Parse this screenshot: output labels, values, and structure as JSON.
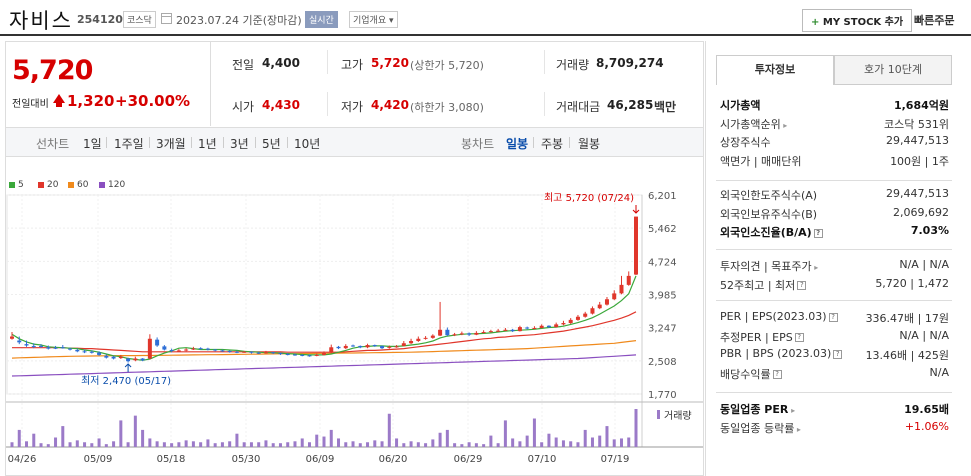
{
  "header": {
    "name": "자비스",
    "code": "254120",
    "market": "코스닥",
    "date": "2023.07.24  기준(장마감)",
    "realtime": "실시간",
    "company": "기업개요 ▾",
    "mystock": "MY STOCK 추가",
    "mystock_plus": "+",
    "quick_order": "빠른주문"
  },
  "price": {
    "current": "5,720",
    "change_label": "전일대비",
    "change_amount": "1,320",
    "change_pct": "+30.00%"
  },
  "stats": {
    "prev_label": "전일",
    "prev": "4,400",
    "high_label": "고가",
    "high": "5,720",
    "high_note": "(상한가 5,720)",
    "vol_label": "거래량",
    "vol": "8,709,274",
    "open_label": "시가",
    "open": "4,430",
    "low_label": "저가",
    "low": "4,420",
    "low_note": "(하한가 3,080)",
    "amt_label": "거래대금",
    "amt": "46,285",
    "amt_unit": "백만"
  },
  "period": {
    "line_label": "선차트",
    "line_opts": [
      "1일",
      "1주일",
      "3개월",
      "1년",
      "3년",
      "5년",
      "10년"
    ],
    "candle_label": "봉차트",
    "candle_opts": [
      "일봉",
      "주봉",
      "월봉"
    ],
    "active_candle": "일봉"
  },
  "legend": [
    {
      "name": "5",
      "color": "#3aa83a"
    },
    {
      "name": "20",
      "color": "#e0362b"
    },
    {
      "name": "60",
      "color": "#f08a1c"
    },
    {
      "name": "120",
      "color": "#8a4fc0"
    }
  ],
  "chart_data": {
    "type": "candlestick",
    "title": "",
    "ylim": [
      1770,
      6201
    ],
    "y_ticks": [
      "6,201",
      "5,462",
      "4,724",
      "3,985",
      "3,247",
      "2,508",
      "1,770"
    ],
    "x_ticks": [
      "04/26",
      "05/09",
      "05/18",
      "05/30",
      "06/09",
      "06/20",
      "06/29",
      "07/10",
      "07/19"
    ],
    "max_annotation": "최고 5,720 (07/24)",
    "min_annotation": "최저 2,470 (05/17)",
    "volume_label": "거래량",
    "closes": [
      3050,
      2920,
      2850,
      2820,
      2830,
      2780,
      2790,
      2800,
      2760,
      2720,
      2700,
      2690,
      2640,
      2580,
      2560,
      2600,
      2500,
      2560,
      2520,
      3000,
      2850,
      2760,
      2730,
      2740,
      2760,
      2780,
      2780,
      2760,
      2740,
      2730,
      2710,
      2700,
      2710,
      2690,
      2680,
      2700,
      2680,
      2660,
      2650,
      2640,
      2630,
      2620,
      2640,
      2680,
      2810,
      2790,
      2840,
      2840,
      2810,
      2860,
      2840,
      2790,
      2820,
      2830,
      2900,
      2950,
      3000,
      3020,
      3070,
      3200,
      3080,
      3100,
      3120,
      3090,
      3130,
      3150,
      3170,
      3180,
      3200,
      3170,
      3260,
      3230,
      3240,
      3290,
      3260,
      3320,
      3350,
      3420,
      3490,
      3560,
      3680,
      3760,
      3880,
      4010,
      4200,
      4400,
      5720
    ],
    "opens": [
      3000,
      2960,
      2880,
      2840,
      2840,
      2810,
      2800,
      2810,
      2780,
      2750,
      2720,
      2710,
      2690,
      2620,
      2600,
      2570,
      2560,
      2520,
      2560,
      2560,
      2980,
      2830,
      2750,
      2730,
      2740,
      2760,
      2790,
      2780,
      2760,
      2740,
      2730,
      2710,
      2700,
      2710,
      2690,
      2680,
      2700,
      2680,
      2660,
      2650,
      2640,
      2630,
      2620,
      2640,
      2700,
      2820,
      2790,
      2850,
      2840,
      2810,
      2860,
      2840,
      2800,
      2820,
      2840,
      2900,
      2950,
      3000,
      3020,
      3070,
      3200,
      3080,
      3100,
      3120,
      3090,
      3130,
      3150,
      3170,
      3180,
      3200,
      3170,
      3250,
      3230,
      3240,
      3290,
      3260,
      3320,
      3350,
      3420,
      3490,
      3560,
      3680,
      3760,
      3880,
      4010,
      4200,
      4430
    ],
    "highs": [
      3150,
      3050,
      2960,
      2900,
      2880,
      2850,
      2840,
      2860,
      2800,
      2780,
      2760,
      2740,
      2720,
      2650,
      2620,
      2640,
      2580,
      2600,
      2570,
      3100,
      3030,
      2860,
      2780,
      2770,
      2790,
      2820,
      2810,
      2800,
      2770,
      2760,
      2740,
      2730,
      2730,
      2720,
      2710,
      2730,
      2710,
      2690,
      2680,
      2670,
      2660,
      2650,
      2670,
      2720,
      2870,
      2840,
      2880,
      2870,
      2850,
      2890,
      2870,
      2850,
      2850,
      2860,
      2950,
      3000,
      3050,
      3060,
      3100,
      3820,
      3250,
      3130,
      3160,
      3140,
      3170,
      3190,
      3200,
      3220,
      3240,
      3220,
      3290,
      3270,
      3280,
      3320,
      3300,
      3360,
      3400,
      3460,
      3530,
      3600,
      3720,
      3820,
      3930,
      4080,
      4400,
      4500,
      5720
    ],
    "lows": [
      2980,
      2880,
      2820,
      2790,
      2800,
      2760,
      2770,
      2780,
      2740,
      2700,
      2680,
      2670,
      2620,
      2560,
      2540,
      2550,
      2470,
      2500,
      2500,
      2540,
      2820,
      2740,
      2700,
      2710,
      2720,
      2750,
      2760,
      2740,
      2720,
      2710,
      2690,
      2680,
      2690,
      2670,
      2660,
      2670,
      2660,
      2640,
      2630,
      2620,
      2610,
      2600,
      2610,
      2630,
      2680,
      2770,
      2770,
      2820,
      2790,
      2790,
      2820,
      2770,
      2780,
      2800,
      2830,
      2880,
      2930,
      2980,
      3000,
      3060,
      3060,
      3060,
      3080,
      3060,
      3080,
      3120,
      3140,
      3150,
      3170,
      3150,
      3160,
      3210,
      3210,
      3230,
      3240,
      3250,
      3300,
      3330,
      3400,
      3470,
      3540,
      3660,
      3740,
      3860,
      3990,
      4180,
      4420
    ],
    "volumes": [
      5,
      18,
      6,
      14,
      4,
      3,
      10,
      22,
      5,
      7,
      5,
      4,
      9,
      3,
      6,
      28,
      5,
      33,
      18,
      9,
      6,
      5,
      4,
      5,
      7,
      6,
      5,
      8,
      4,
      5,
      6,
      14,
      5,
      5,
      5,
      7,
      4,
      4,
      5,
      6,
      9,
      5,
      13,
      11,
      18,
      9,
      5,
      6,
      4,
      5,
      7,
      6,
      35,
      9,
      4,
      6,
      5,
      4,
      8,
      15,
      18,
      4,
      3,
      5,
      4,
      3,
      12,
      4,
      28,
      9,
      6,
      12,
      30,
      5,
      14,
      10,
      7,
      6,
      5,
      18,
      10,
      12,
      22,
      8,
      9,
      10,
      40
    ],
    "ma5": [
      3100,
      3000,
      2930,
      2880,
      2860,
      2820,
      2810,
      2800,
      2790,
      2780,
      2750,
      2730,
      2700,
      2660,
      2620,
      2600,
      2560,
      2540,
      2520,
      2550,
      2620,
      2680,
      2730,
      2790,
      2800,
      2780,
      2760,
      2760,
      2760,
      2760,
      2750,
      2740,
      2720,
      2710,
      2700,
      2690,
      2690,
      2680,
      2670,
      2660,
      2650,
      2640,
      2640,
      2640,
      2660,
      2700,
      2740,
      2790,
      2820,
      2830,
      2840,
      2840,
      2830,
      2830,
      2840,
      2860,
      2880,
      2910,
      2950,
      3020,
      3060,
      3080,
      3100,
      3110,
      3110,
      3120,
      3130,
      3150,
      3170,
      3180,
      3190,
      3200,
      3210,
      3230,
      3250,
      3260,
      3280,
      3320,
      3360,
      3410,
      3470,
      3550,
      3640,
      3730,
      3850,
      4000,
      4400
    ],
    "ma20": [
      2800,
      2800,
      2800,
      2800,
      2800,
      2800,
      2800,
      2800,
      2790,
      2790,
      2780,
      2780,
      2770,
      2760,
      2750,
      2740,
      2730,
      2720,
      2710,
      2710,
      2710,
      2710,
      2710,
      2710,
      2710,
      2710,
      2710,
      2710,
      2710,
      2710,
      2710,
      2710,
      2710,
      2710,
      2710,
      2710,
      2710,
      2710,
      2700,
      2700,
      2700,
      2700,
      2700,
      2700,
      2700,
      2700,
      2710,
      2720,
      2730,
      2740,
      2740,
      2750,
      2760,
      2770,
      2780,
      2800,
      2820,
      2840,
      2860,
      2880,
      2900,
      2920,
      2940,
      2960,
      2980,
      3000,
      3010,
      3030,
      3040,
      3060,
      3070,
      3080,
      3090,
      3110,
      3130,
      3150,
      3170,
      3200,
      3230,
      3260,
      3290,
      3330,
      3370,
      3410,
      3460,
      3520,
      3600
    ],
    "ma60": [
      2570,
      2575,
      2580,
      2585,
      2590,
      2595,
      2600,
      2605,
      2610,
      2612,
      2614,
      2616,
      2618,
      2620,
      2622,
      2624,
      2625,
      2626,
      2627,
      2628,
      2630,
      2632,
      2634,
      2636,
      2638,
      2640,
      2642,
      2644,
      2646,
      2648,
      2650,
      2652,
      2654,
      2656,
      2658,
      2660,
      2662,
      2664,
      2666,
      2668,
      2670,
      2672,
      2674,
      2676,
      2678,
      2680,
      2682,
      2684,
      2686,
      2688,
      2690,
      2692,
      2694,
      2696,
      2698,
      2700,
      2705,
      2710,
      2715,
      2720,
      2725,
      2730,
      2735,
      2740,
      2745,
      2750,
      2755,
      2760,
      2765,
      2770,
      2775,
      2780,
      2790,
      2800,
      2810,
      2820,
      2830,
      2840,
      2850,
      2860,
      2870,
      2880,
      2890,
      2900,
      2920,
      2940,
      2960
    ],
    "ma120": [
      2170,
      2175,
      2180,
      2185,
      2190,
      2195,
      2200,
      2205,
      2210,
      2215,
      2220,
      2225,
      2230,
      2235,
      2240,
      2245,
      2250,
      2255,
      2260,
      2265,
      2270,
      2275,
      2280,
      2285,
      2290,
      2295,
      2300,
      2305,
      2310,
      2315,
      2320,
      2325,
      2330,
      2335,
      2340,
      2345,
      2350,
      2355,
      2360,
      2365,
      2370,
      2375,
      2380,
      2385,
      2390,
      2395,
      2400,
      2405,
      2410,
      2415,
      2420,
      2425,
      2430,
      2435,
      2440,
      2445,
      2450,
      2455,
      2460,
      2465,
      2470,
      2475,
      2480,
      2485,
      2490,
      2495,
      2500,
      2505,
      2510,
      2515,
      2520,
      2525,
      2530,
      2535,
      2540,
      2545,
      2550,
      2555,
      2560,
      2570,
      2580,
      2590,
      2600,
      2610,
      2620,
      2630,
      2640
    ]
  },
  "right": {
    "tab_invest": "투자정보",
    "tab_hoga": "호가 10단계",
    "rows1": [
      {
        "k": "시가총액",
        "v": "1,684억원",
        "bold": true
      },
      {
        "k": "시가총액순위",
        "v": "코스닥 531위",
        "caret": "▸"
      },
      {
        "k": "상장주식수",
        "v": "29,447,513"
      },
      {
        "k": "액면가 | 매매단위",
        "v": "100원 | 1주"
      }
    ],
    "rows2": [
      {
        "k": "외국인한도주식수(A)",
        "v": "29,447,513"
      },
      {
        "k": "외국인보유주식수(B)",
        "v": "2,069,692"
      },
      {
        "k": "외국인소진율(B/A)",
        "v": "7.03%",
        "bold": true,
        "q": "?"
      }
    ],
    "rows3": [
      {
        "k": "투자의견 | 목표주가",
        "v": "N/A | N/A",
        "caret": "▸"
      },
      {
        "k": "52주최고 | 최저",
        "v": "5,720 | 1,472",
        "q": "?"
      }
    ],
    "rows4": [
      {
        "k": "PER | EPS(2023.03)",
        "v": "336.47배 | 17원",
        "q": "?"
      },
      {
        "k": "추정PER | EPS",
        "v": "N/A | N/A",
        "q": "?"
      },
      {
        "k": "PBR | BPS (2023.03)",
        "v": "13.46배 | 425원",
        "q": "?"
      },
      {
        "k": "배당수익률",
        "v": "N/A",
        "q": "?"
      }
    ],
    "rows5": [
      {
        "k": "동일업종 PER",
        "v": "19.65배",
        "bold": true,
        "caret": "▸"
      },
      {
        "k": "동일업종 등락률",
        "v": "+1.06%",
        "caret": "▸",
        "red": true
      }
    ]
  }
}
